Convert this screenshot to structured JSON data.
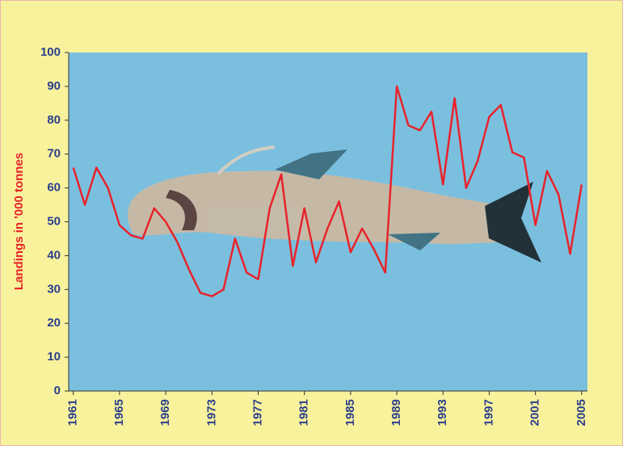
{
  "chart_data": {
    "type": "line",
    "y_label": "Landings in '000 tonnes",
    "x": [
      1961,
      1962,
      1963,
      1964,
      1965,
      1966,
      1967,
      1968,
      1969,
      1970,
      1971,
      1972,
      1973,
      1974,
      1975,
      1976,
      1977,
      1978,
      1979,
      1980,
      1981,
      1982,
      1983,
      1984,
      1985,
      1986,
      1987,
      1988,
      1989,
      1990,
      1991,
      1992,
      1993,
      1994,
      1995,
      1996,
      1997,
      1998,
      1999,
      2000,
      2001,
      2002,
      2003,
      2004,
      2005
    ],
    "series": [
      {
        "name": "Landings",
        "color": "#e8232a",
        "values": [
          66,
          55,
          66,
          60,
          49,
          46,
          45,
          54,
          50,
          44,
          36,
          29,
          28,
          30,
          45,
          35,
          33,
          54,
          64,
          37,
          54,
          38,
          48,
          56,
          41,
          48,
          42,
          35,
          90,
          78.5,
          77,
          82.5,
          61,
          86.5,
          60,
          68,
          81,
          84.5,
          70.5,
          69,
          49,
          65,
          58,
          40.5,
          61
        ]
      }
    ],
    "xlim": [
      1960.6,
      2005.5
    ],
    "xticks": [
      1961,
      1965,
      1969,
      1973,
      1977,
      1981,
      1985,
      1989,
      1993,
      1997,
      2001,
      2005
    ],
    "ylim": [
      0,
      100
    ],
    "yticks": [
      0,
      10,
      20,
      30,
      40,
      50,
      60,
      70,
      80,
      90,
      100
    ],
    "background_color": "#7bbfdf"
  }
}
